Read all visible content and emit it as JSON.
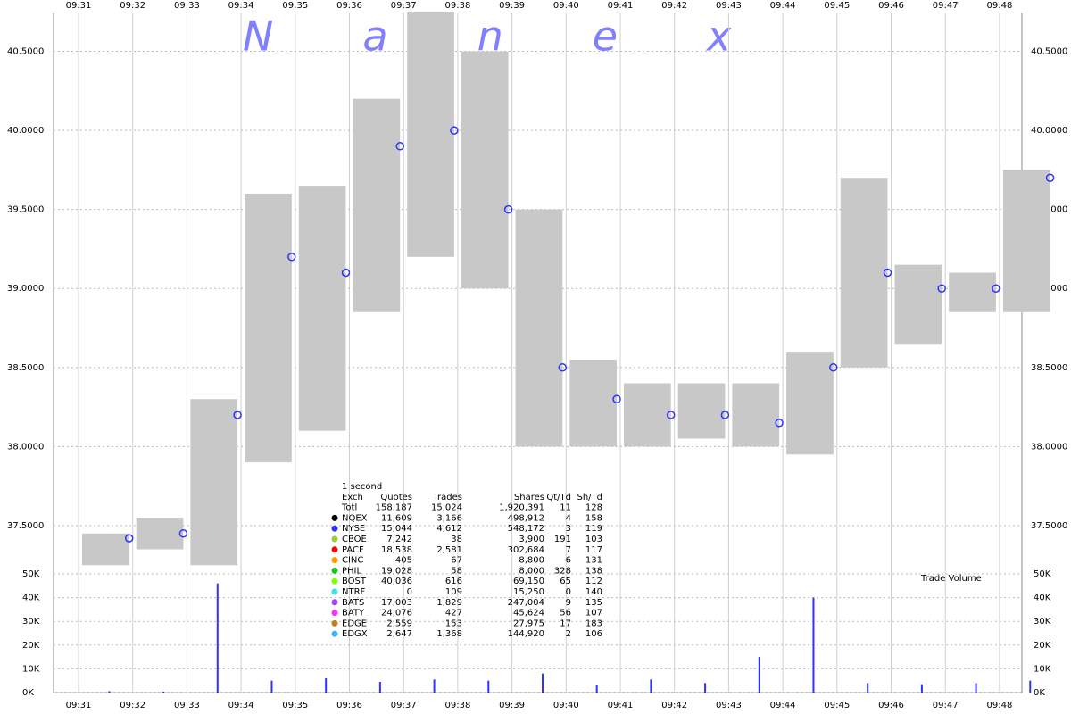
{
  "chart_data": {
    "type": "range",
    "watermark": "Nanex",
    "categories": [
      "09:31",
      "09:32",
      "09:33",
      "09:34",
      "09:35",
      "09:36",
      "09:37",
      "09:38",
      "09:39",
      "09:40",
      "09:41",
      "09:42",
      "09:43",
      "09:44",
      "09:45",
      "09:46",
      "09:47",
      "09:48"
    ],
    "low": [
      37.25,
      37.35,
      37.25,
      37.9,
      38.1,
      38.85,
      39.2,
      39.0,
      38.0,
      38.0,
      38.0,
      38.05,
      38.0,
      37.95,
      38.5,
      38.65,
      38.85,
      38.85
    ],
    "high": [
      37.45,
      37.55,
      38.3,
      39.6,
      39.65,
      40.2,
      40.75,
      40.5,
      39.5,
      38.55,
      38.4,
      38.4,
      38.4,
      38.6,
      39.7,
      39.15,
      39.1,
      39.75
    ],
    "last": [
      37.42,
      37.45,
      38.2,
      39.2,
      39.1,
      39.9,
      40.0,
      39.5,
      38.5,
      38.3,
      38.2,
      38.2,
      38.15,
      38.5,
      39.1,
      39.0,
      39.0,
      39.7
    ],
    "range_color": "#c8c8c8",
    "last_color": "#3030ff",
    "ylim": [
      37.24,
      40.74
    ],
    "yticks": [
      {
        "value": 37.5,
        "label": "37.5000"
      },
      {
        "value": 38.0,
        "label": "38.0000"
      },
      {
        "value": 38.5,
        "label": "38.5000"
      },
      {
        "value": 39.0,
        "label": "39.0000"
      },
      {
        "value": 39.5,
        "label": "39.5000"
      },
      {
        "value": 40.0,
        "label": "40.0000"
      },
      {
        "value": 40.5,
        "label": "40.5000"
      }
    ],
    "volume": {
      "label": "Trade Volume",
      "values": [
        600,
        400,
        46000,
        5000,
        6000,
        4500,
        5500,
        5000,
        8000,
        3000,
        5500,
        4000,
        15000,
        40000,
        4000,
        3500,
        4000,
        5000
      ],
      "color": "#3030ff",
      "ylim": [
        0,
        50000
      ],
      "yticks": [
        {
          "value": 0,
          "label": "0K"
        },
        {
          "value": 10000,
          "label": "10K"
        },
        {
          "value": 20000,
          "label": "20K"
        },
        {
          "value": 30000,
          "label": "30K"
        },
        {
          "value": 40000,
          "label": "40K"
        },
        {
          "value": 50000,
          "label": "50K"
        }
      ]
    },
    "grid": true,
    "legend_table": {
      "interval": "1 second",
      "header": [
        "Exch",
        "Quotes",
        "Trades",
        "Shares",
        "Qt/Td",
        "Sh/Td"
      ],
      "rows": [
        {
          "cells": [
            "Totl",
            "158,187",
            "15,024",
            "1,920,391",
            "11",
            "128"
          ],
          "color": null
        },
        {
          "cells": [
            "NQEX",
            "11,609",
            "3,166",
            "498,912",
            "4",
            "158"
          ],
          "color": "#000000"
        },
        {
          "cells": [
            "NYSE",
            "15,044",
            "4,612",
            "548,172",
            "3",
            "119"
          ],
          "color": "#3030ff"
        },
        {
          "cells": [
            "CBOE",
            "7,242",
            "38",
            "3,900",
            "191",
            "103"
          ],
          "color": "#9acd32"
        },
        {
          "cells": [
            "PACF",
            "18,538",
            "2,581",
            "302,684",
            "7",
            "117"
          ],
          "color": "#ff0000"
        },
        {
          "cells": [
            "CINC",
            "405",
            "67",
            "8,800",
            "6",
            "131"
          ],
          "color": "#ff9900"
        },
        {
          "cells": [
            "PHIL",
            "19,028",
            "58",
            "8,000",
            "328",
            "138"
          ],
          "color": "#20c020"
        },
        {
          "cells": [
            "BOST",
            "40,036",
            "616",
            "69,150",
            "65",
            "112"
          ],
          "color": "#80ff00"
        },
        {
          "cells": [
            "NTRF",
            "0",
            "109",
            "15,250",
            "0",
            "140"
          ],
          "color": "#40e0e0"
        },
        {
          "cells": [
            "BATS",
            "17,003",
            "1,829",
            "247,004",
            "9",
            "135"
          ],
          "color": "#a040ff"
        },
        {
          "cells": [
            "BATY",
            "24,076",
            "427",
            "45,624",
            "56",
            "107"
          ],
          "color": "#ff30ff"
        },
        {
          "cells": [
            "EDGE",
            "2,559",
            "153",
            "27,975",
            "17",
            "183"
          ],
          "color": "#c08020"
        },
        {
          "cells": [
            "EDGX",
            "2,647",
            "1,368",
            "144,920",
            "2",
            "106"
          ],
          "color": "#40b0ff"
        }
      ]
    }
  }
}
